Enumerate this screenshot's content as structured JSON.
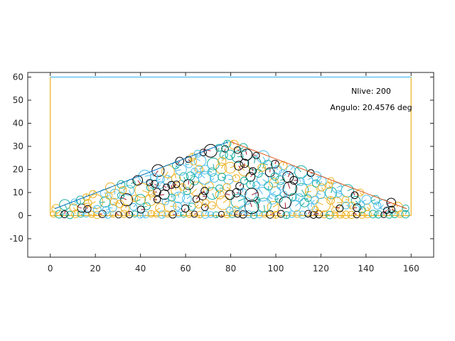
{
  "chart_data": {
    "type": "scatter",
    "title": "",
    "xlabel": "",
    "ylabel": "",
    "xlim": [
      -10,
      170
    ],
    "ylim": [
      -18,
      62
    ],
    "grid": false,
    "x_ticks": [
      0,
      20,
      40,
      60,
      80,
      100,
      120,
      140,
      160
    ],
    "y_ticks": [
      -10,
      0,
      10,
      20,
      30,
      40,
      50,
      60
    ],
    "annotations": [
      {
        "text": "Nlive: 200"
      },
      {
        "text": "Angulo: 20.4576 deg"
      }
    ],
    "container": {
      "walls": [
        {
          "x": [
            0,
            0
          ],
          "y": [
            0,
            60
          ],
          "color": "#EDB120"
        },
        {
          "x": [
            160,
            160
          ],
          "y": [
            0,
            60
          ],
          "color": "#EDB120"
        },
        {
          "x": [
            0,
            160
          ],
          "y": [
            60,
            60
          ],
          "color": "#4DBEEE"
        },
        {
          "x": [
            0,
            160
          ],
          "y": [
            0,
            0
          ],
          "color": "#EDB120"
        }
      ]
    },
    "fit_lines": [
      {
        "x": [
          2,
          79
        ],
        "y": [
          3,
          32
        ],
        "color": "#0072BD"
      },
      {
        "x": [
          80,
          158
        ],
        "y": [
          32,
          3
        ],
        "color": "#D95319"
      }
    ],
    "palette": [
      "#0072BD",
      "#D95319",
      "#EDB120",
      "#7E2F8E",
      "#77AC30",
      "#4DBEEE",
      "#A2142F",
      "#000000"
    ],
    "particle_colors": [
      "#EDB120",
      "#4DBEEE",
      "#1AAE9F",
      "#000000"
    ],
    "pile": {
      "x_min": 1.5,
      "x_max": 158.5,
      "peak_x": 79,
      "peak_height": 32,
      "edge_height": 3,
      "count": 200,
      "radius_min": 1.4,
      "radius_max": 3.2
    }
  }
}
